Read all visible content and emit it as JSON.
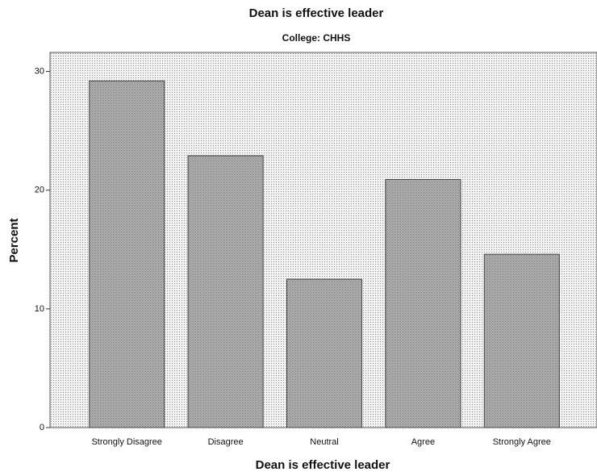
{
  "chart_data": {
    "type": "bar",
    "title": "Dean is effective leader",
    "subtitle": "College: CHHS",
    "x_label": "Dean is effective leader",
    "y_label": "Percent",
    "categories": [
      "Strongly Disagree",
      "Disagree",
      "Neutral",
      "Agree",
      "Strongly Agree"
    ],
    "values": [
      29.2,
      22.9,
      12.5,
      20.9,
      14.6
    ],
    "color": "#a8a8a8",
    "ylim": [
      0,
      31.6
    ],
    "yticks": [
      0,
      10,
      20,
      30
    ],
    "grid": false
  }
}
